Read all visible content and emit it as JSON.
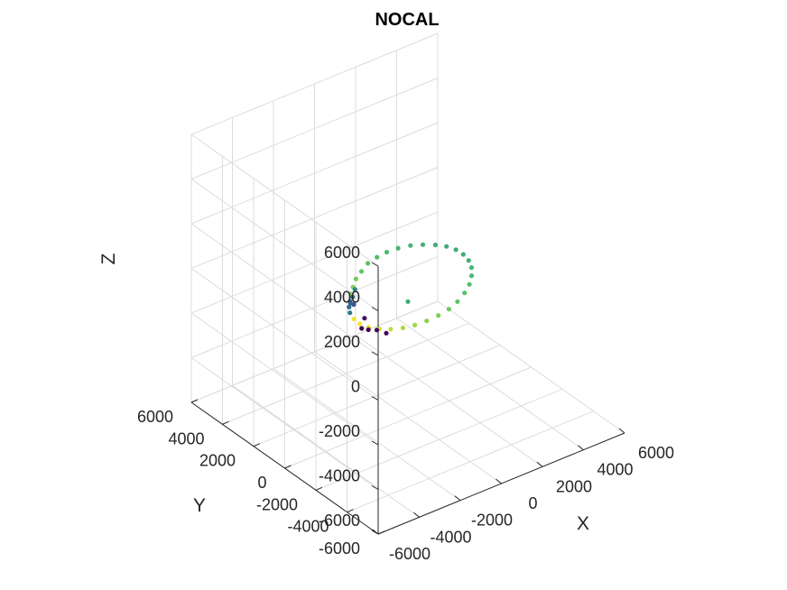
{
  "chart_data": {
    "type": "scatter3d",
    "title": "NOCAL",
    "xlabel": "X",
    "ylabel": "Y",
    "zlabel": "Z",
    "xlim": [
      -6000,
      6000
    ],
    "ylim": [
      -6000,
      6000
    ],
    "zlim": [
      -6000,
      6000
    ],
    "xticks": [
      -6000,
      -4000,
      -2000,
      0,
      2000,
      4000,
      6000
    ],
    "yticks": [
      -6000,
      -4000,
      -2000,
      0,
      2000,
      4000,
      6000
    ],
    "zticks": [
      -6000,
      -4000,
      -2000,
      0,
      2000,
      4000,
      6000
    ],
    "xtick_labels": [
      "-6000",
      "-4000",
      "-2000",
      "0",
      "2000",
      "4000",
      "6000"
    ],
    "ytick_labels": [
      "-6000",
      "-4000",
      "-2000",
      "0",
      "2000",
      "4000",
      "6000"
    ],
    "ztick_labels": [
      "-6000",
      "-4000",
      "-2000",
      "0",
      "2000",
      "4000",
      "6000"
    ],
    "grid": true,
    "colormap": "viridis",
    "colormap_stops": [
      "#440154",
      "#3b528b",
      "#21918c",
      "#5ec962",
      "#fde725"
    ],
    "series": [
      {
        "values": [
          {
            "x": -1575,
            "y": 1575,
            "z": -650,
            "c": 0.82
          },
          {
            "x": -1250,
            "y": 1875,
            "z": -600,
            "c": 0.8
          },
          {
            "x": -900,
            "y": 2150,
            "z": -500,
            "c": 0.78
          },
          {
            "x": -500,
            "y": 2325,
            "z": -400,
            "c": 0.75
          },
          {
            "x": -75,
            "y": 2475,
            "z": -275,
            "c": 0.72
          },
          {
            "x": 350,
            "y": 2450,
            "z": -150,
            "c": 0.7
          },
          {
            "x": 750,
            "y": 2350,
            "z": -25,
            "c": 0.68
          },
          {
            "x": 1150,
            "y": 2150,
            "z": 100,
            "c": 0.66
          },
          {
            "x": 1525,
            "y": 1850,
            "z": 225,
            "c": 0.65
          },
          {
            "x": 1850,
            "y": 1475,
            "z": 325,
            "c": 0.64
          },
          {
            "x": 2150,
            "y": 1075,
            "z": 400,
            "c": 0.63
          },
          {
            "x": 2350,
            "y": 625,
            "z": 475,
            "c": 0.62
          },
          {
            "x": 2450,
            "y": 150,
            "z": 525,
            "c": 0.62
          },
          {
            "x": 2450,
            "y": -325,
            "z": 550,
            "c": 0.63
          },
          {
            "x": 2350,
            "y": -800,
            "z": 550,
            "c": 0.64
          },
          {
            "x": 2150,
            "y": -1250,
            "z": 525,
            "c": 0.66
          },
          {
            "x": 1850,
            "y": -1650,
            "z": 475,
            "c": 0.68
          },
          {
            "x": 1475,
            "y": -2000,
            "z": 400,
            "c": 0.7
          },
          {
            "x": 1050,
            "y": -2250,
            "z": 300,
            "c": 0.72
          },
          {
            "x": 575,
            "y": -2425,
            "z": 175,
            "c": 0.74
          },
          {
            "x": 100,
            "y": -2500,
            "z": 50,
            "c": 0.77
          },
          {
            "x": -375,
            "y": -2450,
            "z": -75,
            "c": 0.8
          },
          {
            "x": -850,
            "y": -2325,
            "z": -200,
            "c": 0.82
          },
          {
            "x": -1275,
            "y": -2125,
            "z": -325,
            "c": 0.85
          },
          {
            "x": -1650,
            "y": -1850,
            "z": -450,
            "c": 0.87
          },
          {
            "x": -1975,
            "y": -1500,
            "z": -550,
            "c": 0.9
          },
          {
            "x": -2225,
            "y": -1100,
            "z": -650,
            "c": 0.93
          },
          {
            "x": -2400,
            "y": -650,
            "z": -725,
            "c": 0.96
          },
          {
            "x": -2475,
            "y": -175,
            "z": -775,
            "c": 0.99
          },
          {
            "x": -2425,
            "y": 275,
            "z": -800,
            "c": 0.98
          },
          {
            "x": -2275,
            "y": 725,
            "z": -800,
            "c": 0.4
          },
          {
            "x": -2050,
            "y": 1075,
            "z": -800,
            "c": 0.36
          },
          {
            "x": -1800,
            "y": 1350,
            "z": -775,
            "c": 0.33
          },
          {
            "x": -1700,
            "y": 1450,
            "z": -950,
            "c": 0.3
          },
          {
            "x": -1400,
            "y": 1700,
            "z": -900,
            "c": 0.38
          },
          {
            "x": -1100,
            "y": 1950,
            "z": -800,
            "c": 0.45
          },
          {
            "x": -1500,
            "y": 1500,
            "z": -1100,
            "c": 0.28
          },
          {
            "x": 0,
            "y": 0,
            "z": -800,
            "c": 0.62
          },
          {
            "x": -350,
            "y": 2075,
            "z": -2950,
            "c": 0.02
          },
          {
            "x": -550,
            "y": 2250,
            "z": -2900,
            "c": 0.01
          },
          {
            "x": -150,
            "y": 1800,
            "z": -2900,
            "c": 0.02
          },
          {
            "x": 100,
            "y": 1525,
            "z": -3000,
            "c": 0.03
          },
          {
            "x": -600,
            "y": 2000,
            "z": -2300,
            "c": 0.05
          }
        ]
      }
    ]
  }
}
